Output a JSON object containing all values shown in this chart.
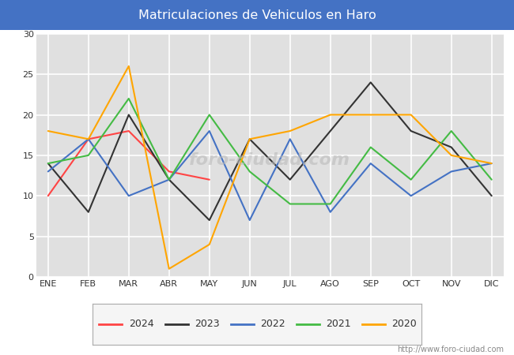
{
  "title": "Matriculaciones de Vehiculos en Haro",
  "title_color": "#ffffff",
  "title_bg_color": "#4472c4",
  "months": [
    "ENE",
    "FEB",
    "MAR",
    "ABR",
    "MAY",
    "JUN",
    "JUL",
    "AGO",
    "SEP",
    "OCT",
    "NOV",
    "DIC"
  ],
  "series": {
    "2024": {
      "color": "#ff4444",
      "values": [
        10,
        17,
        18,
        13,
        12,
        null,
        null,
        null,
        null,
        null,
        null,
        null
      ]
    },
    "2023": {
      "color": "#333333",
      "values": [
        14,
        8,
        20,
        12,
        7,
        17,
        12,
        18,
        24,
        18,
        16,
        10
      ]
    },
    "2022": {
      "color": "#4472c4",
      "values": [
        13,
        17,
        10,
        12,
        18,
        7,
        17,
        8,
        14,
        10,
        13,
        14
      ]
    },
    "2021": {
      "color": "#44bb44",
      "values": [
        14,
        15,
        22,
        12,
        20,
        13,
        9,
        9,
        16,
        12,
        18,
        12
      ]
    },
    "2020": {
      "color": "#ffa500",
      "values": [
        18,
        17,
        26,
        1,
        4,
        17,
        18,
        20,
        20,
        20,
        15,
        14
      ]
    }
  },
  "ylim": [
    0,
    30
  ],
  "yticks": [
    0,
    5,
    10,
    15,
    20,
    25,
    30
  ],
  "plot_bg_color": "#e0e0e0",
  "grid_color": "#ffffff",
  "watermark": "foro-ciudad.com",
  "url": "http://www.foro-ciudad.com",
  "series_order": [
    "2024",
    "2023",
    "2022",
    "2021",
    "2020"
  ]
}
